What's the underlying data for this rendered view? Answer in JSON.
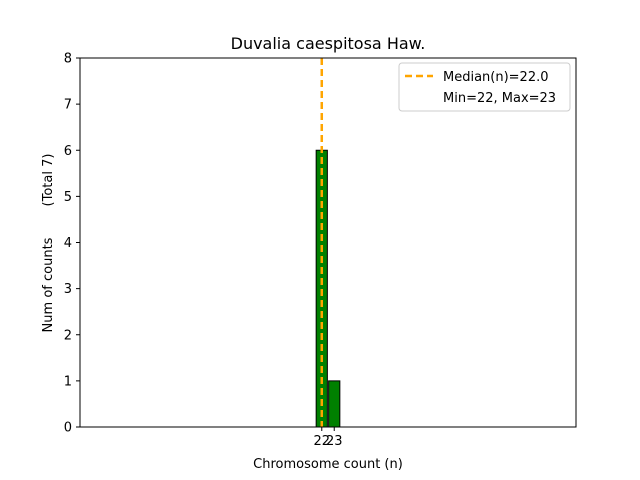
{
  "chart_data": {
    "type": "bar",
    "title": "Duvalia caespitosa Haw.",
    "xlabel": "Chromosome count (n)",
    "ylabel_main": "Num of counts",
    "ylabel_total": "(Total 7)",
    "categories": [
      22,
      23
    ],
    "values": [
      6,
      1
    ],
    "xlim": [
      2.6,
      42.4
    ],
    "ylim": [
      0,
      8
    ],
    "yticks": [
      0,
      1,
      2,
      3,
      4,
      5,
      6,
      7,
      8
    ],
    "xticks": [
      "22",
      "23"
    ],
    "median": 22.0,
    "legend": {
      "placement": "top-right",
      "entries": [
        "Median(n)=22.0",
        "Min=22, Max=23"
      ]
    },
    "colors": {
      "bar_fill": "#008000",
      "bar_edge": "#000000",
      "median_line": "#FFA500"
    },
    "grid": false
  }
}
